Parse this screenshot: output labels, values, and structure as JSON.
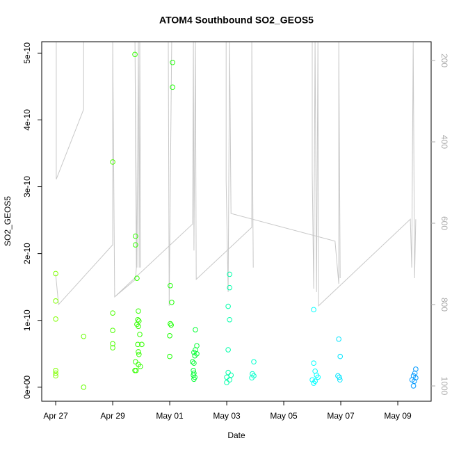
{
  "chart_data": {
    "type": "scatter",
    "title": "ATOM4 Southbound SO2_GEOS5",
    "x_label": "Date",
    "y_label": "SO2_GEOS5",
    "xlim": [
      -0.49,
      13.17
    ],
    "ylim": [
      -2.1e-11,
      5.17e-10
    ],
    "y2lim": [
      1037.6,
      153.8
    ],
    "xticks": [
      {
        "value": 0,
        "label": "Apr 27"
      },
      {
        "value": 2,
        "label": "Apr 29"
      },
      {
        "value": 4,
        "label": "May 01"
      },
      {
        "value": 6,
        "label": "May 03"
      },
      {
        "value": 8,
        "label": "May 05"
      },
      {
        "value": 10,
        "label": "May 07"
      },
      {
        "value": 12,
        "label": "May 09"
      }
    ],
    "yticks": [
      {
        "value": 0,
        "label": "0e+00"
      },
      {
        "value": 1e-10,
        "label": "1e-10"
      },
      {
        "value": 2e-10,
        "label": "2e-10"
      },
      {
        "value": 3e-10,
        "label": "3e-10"
      },
      {
        "value": 4e-10,
        "label": "4e-10"
      },
      {
        "value": 5e-10,
        "label": "5e-10"
      }
    ],
    "y2ticks": [
      200,
      400,
      600,
      800,
      1000
    ],
    "series": [
      {
        "color": "#80ff00",
        "x": [
          0,
          0,
          0,
          0,
          0,
          0
        ],
        "values": [
          1.7e-10,
          1.29e-10,
          1.02e-10,
          2.5e-11,
          2.1e-11,
          1.7e-11
        ]
      },
      {
        "color": "#66ff00",
        "x": [
          0.98,
          0.98
        ],
        "values": [
          7.6e-11,
          0
        ]
      },
      {
        "color": "#4dff00",
        "x": [
          2,
          2,
          2,
          2,
          2
        ],
        "values": [
          3.37e-10,
          1.11e-10,
          8.5e-11,
          6.5e-11,
          5.9e-11
        ]
      },
      {
        "color": "#33ff00",
        "x": [
          2.78,
          2.8,
          2.8,
          2.85,
          2.9,
          2.88,
          2.92,
          2.85,
          2.9,
          2.95,
          2.88,
          3.02,
          2.9,
          2.92,
          2.8,
          2.9,
          2.97,
          2.78,
          2.82
        ],
        "values": [
          4.98e-10,
          2.26e-10,
          2.13e-10,
          1.63e-10,
          1.14e-10,
          1.01e-10,
          9.9e-11,
          9.4e-11,
          9.1e-11,
          7.9e-11,
          6.4e-11,
          6.4e-11,
          5.3e-11,
          4.9e-11,
          3.8e-11,
          3.4e-11,
          3.1e-11,
          2.5e-11,
          2.5e-11
        ]
      },
      {
        "color": "#1aff00",
        "x": [
          4.1,
          4.1,
          4.02,
          4.07,
          4.02,
          4.05,
          4.0,
          4.0
        ],
        "values": [
          4.86e-10,
          4.49e-10,
          1.52e-10,
          1.27e-10,
          9.5e-11,
          9.3e-11,
          7.7e-11,
          4.6e-11
        ]
      },
      {
        "color": "#00ff33",
        "x": [
          4.9,
          4.95,
          4.9,
          4.85,
          4.95,
          4.88,
          4.8,
          4.85,
          4.83,
          4.85,
          4.83,
          4.88,
          4.85
        ],
        "values": [
          8.6e-11,
          6.2e-11,
          5.6e-11,
          5.2e-11,
          5e-11,
          4.7e-11,
          3.8e-11,
          3.6e-11,
          2.5e-11,
          2.1e-11,
          1.8e-11,
          1.5e-11,
          1.2e-11
        ]
      },
      {
        "color": "#00ffaa",
        "x": [
          6.1,
          6.1,
          6.05,
          6.1,
          6.05,
          6.05,
          6.15,
          6.0,
          6.1,
          6.0
        ],
        "values": [
          1.69e-10,
          1.49e-10,
          1.21e-10,
          1.01e-10,
          5.6e-11,
          2.2e-11,
          1.8e-11,
          1.5e-11,
          1.1e-11,
          7e-12
        ]
      },
      {
        "color": "#00ffcc",
        "x": [
          6.95,
          6.9,
          6.95,
          6.88
        ],
        "values": [
          3.8e-11,
          2e-11,
          1.7e-11,
          1.4e-11
        ]
      },
      {
        "color": "#00ffff",
        "x": [
          9.05,
          9.05,
          9.1,
          9.15,
          9.2,
          9.0,
          9.1,
          9.05
        ],
        "values": [
          1.16e-10,
          3.6e-11,
          2.4e-11,
          1.8e-11,
          1.5e-11,
          1.1e-11,
          9e-12,
          6e-12
        ]
      },
      {
        "color": "#00e5ff",
        "x": [
          9.93,
          9.98,
          9.9,
          9.95,
          9.97
        ],
        "values": [
          7.2e-11,
          4.6e-11,
          1.7e-11,
          1.5e-11,
          1.1e-11
        ]
      },
      {
        "color": "#0099ff",
        "x": [
          12.63,
          12.6,
          12.55,
          12.63,
          12.5,
          12.58,
          12.55
        ],
        "values": [
          2.7e-11,
          2.1e-11,
          1.7e-11,
          1.4e-11,
          1.1e-11,
          9e-12,
          2e-12
        ]
      }
    ],
    "track": {
      "color": "#c8c8c8",
      "axis": "y2",
      "x": [
        0.02,
        0.02,
        0.98,
        0.98,
        null,
        0,
        0.1,
        2.0,
        2.0,
        2.07,
        2.8,
        2.83,
        2.78,
        2.85,
        2.9,
        2.93,
        2.95,
        2.98,
        null,
        3.95,
        3.98,
        4.07,
        null,
        2.07,
        4.8,
        4.83,
        4.85,
        4.9,
        4.93,
        6.88,
        6.88,
        6.93,
        null,
        5.98,
        5.98,
        6.05,
        6.1,
        6.15,
        9.8,
        9.93,
        9.93,
        9.98,
        null,
        9.0,
        9.0,
        9.05,
        9.1,
        9.15,
        9.2,
        9.22,
        12.44,
        12.49,
        12.54,
        12.59,
        12.63
      ],
      "values": [
        155,
        492,
        320,
        155,
        null,
        726,
        800,
        653,
        155,
        781,
        738,
        709,
        155,
        709,
        155,
        709,
        155,
        709,
        null,
        155,
        803,
        155,
        null,
        781,
        602,
        155,
        667,
        155,
        738,
        610,
        155,
        709,
        null,
        155,
        496,
        769,
        155,
        576,
        644,
        749,
        155,
        735,
        null,
        155,
        475,
        761,
        155,
        769,
        155,
        803,
        590,
        709,
        155,
        735,
        590
      ]
    }
  }
}
